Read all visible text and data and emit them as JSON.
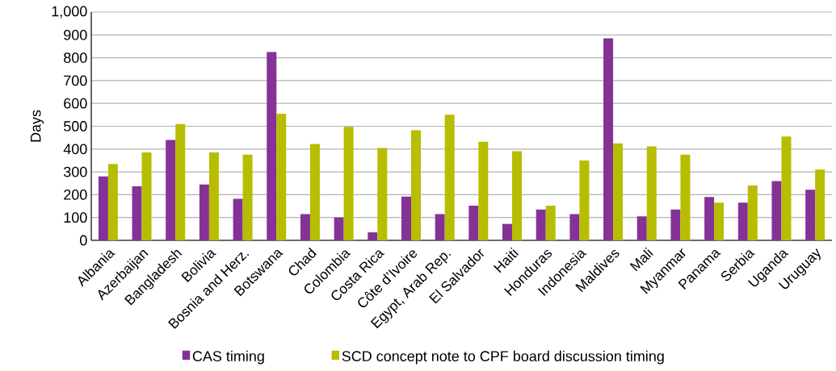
{
  "chart_data": {
    "type": "bar",
    "ylabel": "Days",
    "categories": [
      "Albania",
      "Azerbaijan",
      "Bangladesh",
      "Bolivia",
      "Bosnia and Herz.",
      "Botswana",
      "Chad",
      "Colombia",
      "Costa Rica",
      "Côte d’Ivoire",
      "Egypt, Arab Rep.",
      "El Salvador",
      "Haiti",
      "Honduras",
      "Indonesia",
      "Maldives",
      "Mali",
      "Myanmar",
      "Panama",
      "Serbia",
      "Uganda",
      "Uruguay"
    ],
    "series": [
      {
        "name": "CAS timing",
        "color": "#853296",
        "values": [
          280,
          237,
          440,
          245,
          182,
          825,
          115,
          100,
          35,
          192,
          115,
          152,
          72,
          135,
          115,
          885,
          105,
          135,
          190,
          165,
          260,
          222
        ]
      },
      {
        "name": "SCD concept note to CPF board discussion timing",
        "color": "#b7bd00",
        "values": [
          335,
          385,
          510,
          385,
          375,
          555,
          422,
          497,
          405,
          482,
          550,
          432,
          390,
          152,
          350,
          425,
          412,
          375,
          165,
          240,
          455,
          310
        ]
      }
    ],
    "ylim": [
      0,
      1000
    ],
    "yticks": [
      0,
      100,
      200,
      300,
      400,
      500,
      600,
      700,
      800,
      900,
      {
        "value": 1000,
        "label": "1,000"
      }
    ],
    "grid": "y",
    "legend": "bottom"
  }
}
